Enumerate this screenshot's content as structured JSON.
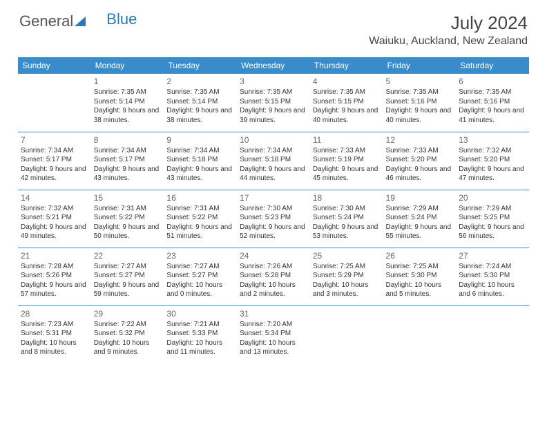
{
  "brand": {
    "part1": "General",
    "part2": "Blue",
    "color_gray": "#555555",
    "color_blue": "#2a7ab8"
  },
  "title": "July 2024",
  "location": "Waiuku, Auckland, New Zealand",
  "header_bg": "#3a8bc9",
  "header_text_color": "#ffffff",
  "divider_color": "#3a8bc9",
  "body_text_color": "#333333",
  "daynum_color": "#666666",
  "day_headers": [
    "Sunday",
    "Monday",
    "Tuesday",
    "Wednesday",
    "Thursday",
    "Friday",
    "Saturday"
  ],
  "weeks": [
    [
      null,
      {
        "n": "1",
        "sr": "7:35 AM",
        "ss": "5:14 PM",
        "dl": "9 hours and 38 minutes."
      },
      {
        "n": "2",
        "sr": "7:35 AM",
        "ss": "5:14 PM",
        "dl": "9 hours and 38 minutes."
      },
      {
        "n": "3",
        "sr": "7:35 AM",
        "ss": "5:15 PM",
        "dl": "9 hours and 39 minutes."
      },
      {
        "n": "4",
        "sr": "7:35 AM",
        "ss": "5:15 PM",
        "dl": "9 hours and 40 minutes."
      },
      {
        "n": "5",
        "sr": "7:35 AM",
        "ss": "5:16 PM",
        "dl": "9 hours and 40 minutes."
      },
      {
        "n": "6",
        "sr": "7:35 AM",
        "ss": "5:16 PM",
        "dl": "9 hours and 41 minutes."
      }
    ],
    [
      {
        "n": "7",
        "sr": "7:34 AM",
        "ss": "5:17 PM",
        "dl": "9 hours and 42 minutes."
      },
      {
        "n": "8",
        "sr": "7:34 AM",
        "ss": "5:17 PM",
        "dl": "9 hours and 43 minutes."
      },
      {
        "n": "9",
        "sr": "7:34 AM",
        "ss": "5:18 PM",
        "dl": "9 hours and 43 minutes."
      },
      {
        "n": "10",
        "sr": "7:34 AM",
        "ss": "5:18 PM",
        "dl": "9 hours and 44 minutes."
      },
      {
        "n": "11",
        "sr": "7:33 AM",
        "ss": "5:19 PM",
        "dl": "9 hours and 45 minutes."
      },
      {
        "n": "12",
        "sr": "7:33 AM",
        "ss": "5:20 PM",
        "dl": "9 hours and 46 minutes."
      },
      {
        "n": "13",
        "sr": "7:32 AM",
        "ss": "5:20 PM",
        "dl": "9 hours and 47 minutes."
      }
    ],
    [
      {
        "n": "14",
        "sr": "7:32 AM",
        "ss": "5:21 PM",
        "dl": "9 hours and 49 minutes."
      },
      {
        "n": "15",
        "sr": "7:31 AM",
        "ss": "5:22 PM",
        "dl": "9 hours and 50 minutes."
      },
      {
        "n": "16",
        "sr": "7:31 AM",
        "ss": "5:22 PM",
        "dl": "9 hours and 51 minutes."
      },
      {
        "n": "17",
        "sr": "7:30 AM",
        "ss": "5:23 PM",
        "dl": "9 hours and 52 minutes."
      },
      {
        "n": "18",
        "sr": "7:30 AM",
        "ss": "5:24 PM",
        "dl": "9 hours and 53 minutes."
      },
      {
        "n": "19",
        "sr": "7:29 AM",
        "ss": "5:24 PM",
        "dl": "9 hours and 55 minutes."
      },
      {
        "n": "20",
        "sr": "7:29 AM",
        "ss": "5:25 PM",
        "dl": "9 hours and 56 minutes."
      }
    ],
    [
      {
        "n": "21",
        "sr": "7:28 AM",
        "ss": "5:26 PM",
        "dl": "9 hours and 57 minutes."
      },
      {
        "n": "22",
        "sr": "7:27 AM",
        "ss": "5:27 PM",
        "dl": "9 hours and 59 minutes."
      },
      {
        "n": "23",
        "sr": "7:27 AM",
        "ss": "5:27 PM",
        "dl": "10 hours and 0 minutes."
      },
      {
        "n": "24",
        "sr": "7:26 AM",
        "ss": "5:28 PM",
        "dl": "10 hours and 2 minutes."
      },
      {
        "n": "25",
        "sr": "7:25 AM",
        "ss": "5:29 PM",
        "dl": "10 hours and 3 minutes."
      },
      {
        "n": "26",
        "sr": "7:25 AM",
        "ss": "5:30 PM",
        "dl": "10 hours and 5 minutes."
      },
      {
        "n": "27",
        "sr": "7:24 AM",
        "ss": "5:30 PM",
        "dl": "10 hours and 6 minutes."
      }
    ],
    [
      {
        "n": "28",
        "sr": "7:23 AM",
        "ss": "5:31 PM",
        "dl": "10 hours and 8 minutes."
      },
      {
        "n": "29",
        "sr": "7:22 AM",
        "ss": "5:32 PM",
        "dl": "10 hours and 9 minutes."
      },
      {
        "n": "30",
        "sr": "7:21 AM",
        "ss": "5:33 PM",
        "dl": "10 hours and 11 minutes."
      },
      {
        "n": "31",
        "sr": "7:20 AM",
        "ss": "5:34 PM",
        "dl": "10 hours and 13 minutes."
      },
      null,
      null,
      null
    ]
  ],
  "labels": {
    "sunrise": "Sunrise: ",
    "sunset": "Sunset: ",
    "daylight": "Daylight: "
  }
}
